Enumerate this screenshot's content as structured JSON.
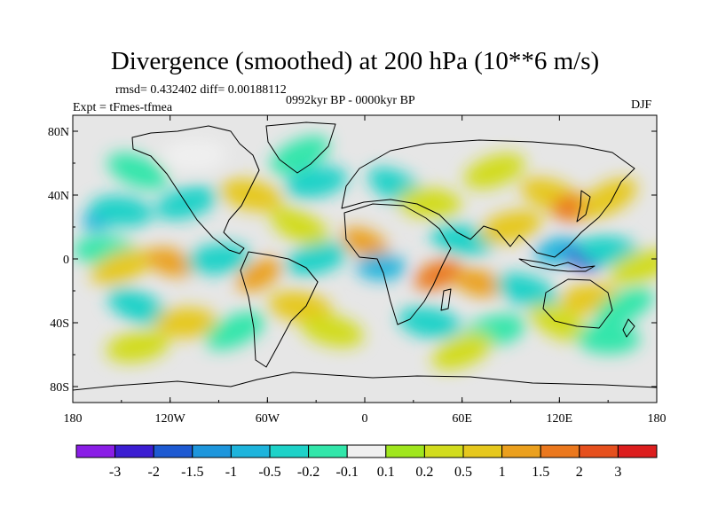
{
  "title": "Divergence (smoothed) at 200 hPa (10**6 m/s)",
  "stats": "rmsd= 0.432402 diff= 0.00188112",
  "experiment": "Expt = tFmes-tfmea",
  "period": "0992kyr BP - 0000kyr BP",
  "season": "DJF",
  "map": {
    "background_color": "#e6e6e6",
    "lon_ticks": [
      "180",
      "120W",
      "60W",
      "0",
      "60E",
      "120E",
      "180"
    ],
    "lat_ticks": [
      "80N",
      "40N",
      "0",
      "40S",
      "80S"
    ]
  },
  "colorbar": {
    "colors": [
      "#8a1ee6",
      "#3c1ed2",
      "#1e5ad2",
      "#1e96dc",
      "#1eb4dc",
      "#1ed2c8",
      "#32e6aa",
      "#f0f0f0",
      "#a0e61e",
      "#d2dc1e",
      "#e6c81e",
      "#eba01e",
      "#eb781e",
      "#e6501e",
      "#dc1e1e"
    ],
    "labels": [
      "-3",
      "-2",
      "-1.5",
      "-1",
      "-0.5",
      "-0.2",
      "-0.1",
      "0.1",
      "0.2",
      "0.5",
      "1",
      "1.5",
      "2",
      "3"
    ]
  },
  "field_blobs": [
    {
      "lon": -160,
      "lat": 28,
      "value": -1
    },
    {
      "lon": -150,
      "lat": 30,
      "value": -0.5
    },
    {
      "lon": -110,
      "lat": 35,
      "value": -0.5
    },
    {
      "lon": -140,
      "lat": 55,
      "value": -0.2
    },
    {
      "lon": -105,
      "lat": 65,
      "value": -0.1
    },
    {
      "lon": -40,
      "lat": 65,
      "value": -0.2
    },
    {
      "lon": -70,
      "lat": 40,
      "value": 0.5
    },
    {
      "lon": -30,
      "lat": 48,
      "value": -0.5
    },
    {
      "lon": -40,
      "lat": 20,
      "value": 0.2
    },
    {
      "lon": -160,
      "lat": 5,
      "value": -0.2
    },
    {
      "lon": -150,
      "lat": -5,
      "value": 0.5
    },
    {
      "lon": -120,
      "lat": -2,
      "value": 1
    },
    {
      "lon": -90,
      "lat": 0,
      "value": -0.5
    },
    {
      "lon": -65,
      "lat": -10,
      "value": 1
    },
    {
      "lon": -40,
      "lat": -30,
      "value": 0.5
    },
    {
      "lon": -30,
      "lat": 0,
      "value": -0.5
    },
    {
      "lon": -140,
      "lat": -30,
      "value": -0.5
    },
    {
      "lon": -110,
      "lat": -40,
      "value": 0.5
    },
    {
      "lon": -80,
      "lat": -45,
      "value": -0.2
    },
    {
      "lon": -20,
      "lat": -45,
      "value": 0.2
    },
    {
      "lon": -140,
      "lat": -55,
      "value": 0.2
    },
    {
      "lon": 20,
      "lat": 45,
      "value": -0.5
    },
    {
      "lon": 40,
      "lat": 35,
      "value": 0.2
    },
    {
      "lon": 80,
      "lat": 55,
      "value": 0.2
    },
    {
      "lon": 115,
      "lat": 40,
      "value": 0.5
    },
    {
      "lon": 130,
      "lat": 32,
      "value": 1.5
    },
    {
      "lon": 150,
      "lat": 38,
      "value": 0.5
    },
    {
      "lon": 60,
      "lat": 12,
      "value": -0.5
    },
    {
      "lon": 90,
      "lat": 20,
      "value": 0.5
    },
    {
      "lon": 0,
      "lat": 10,
      "value": 1
    },
    {
      "lon": 10,
      "lat": -5,
      "value": -1
    },
    {
      "lon": 45,
      "lat": -10,
      "value": 1.5
    },
    {
      "lon": 70,
      "lat": -15,
      "value": 1
    },
    {
      "lon": 120,
      "lat": 5,
      "value": -1
    },
    {
      "lon": 135,
      "lat": 0,
      "value": -3
    },
    {
      "lon": 150,
      "lat": 5,
      "value": -0.5
    },
    {
      "lon": 170,
      "lat": -5,
      "value": 0.2
    },
    {
      "lon": 100,
      "lat": -20,
      "value": -0.5
    },
    {
      "lon": 140,
      "lat": -25,
      "value": 0.5
    },
    {
      "lon": 160,
      "lat": -30,
      "value": -0.2
    },
    {
      "lon": 40,
      "lat": -40,
      "value": -0.5
    },
    {
      "lon": 80,
      "lat": -45,
      "value": -0.2
    },
    {
      "lon": 120,
      "lat": -40,
      "value": 0.2
    },
    {
      "lon": 150,
      "lat": -50,
      "value": -0.2
    },
    {
      "lon": 60,
      "lat": -58,
      "value": 0.2
    }
  ]
}
